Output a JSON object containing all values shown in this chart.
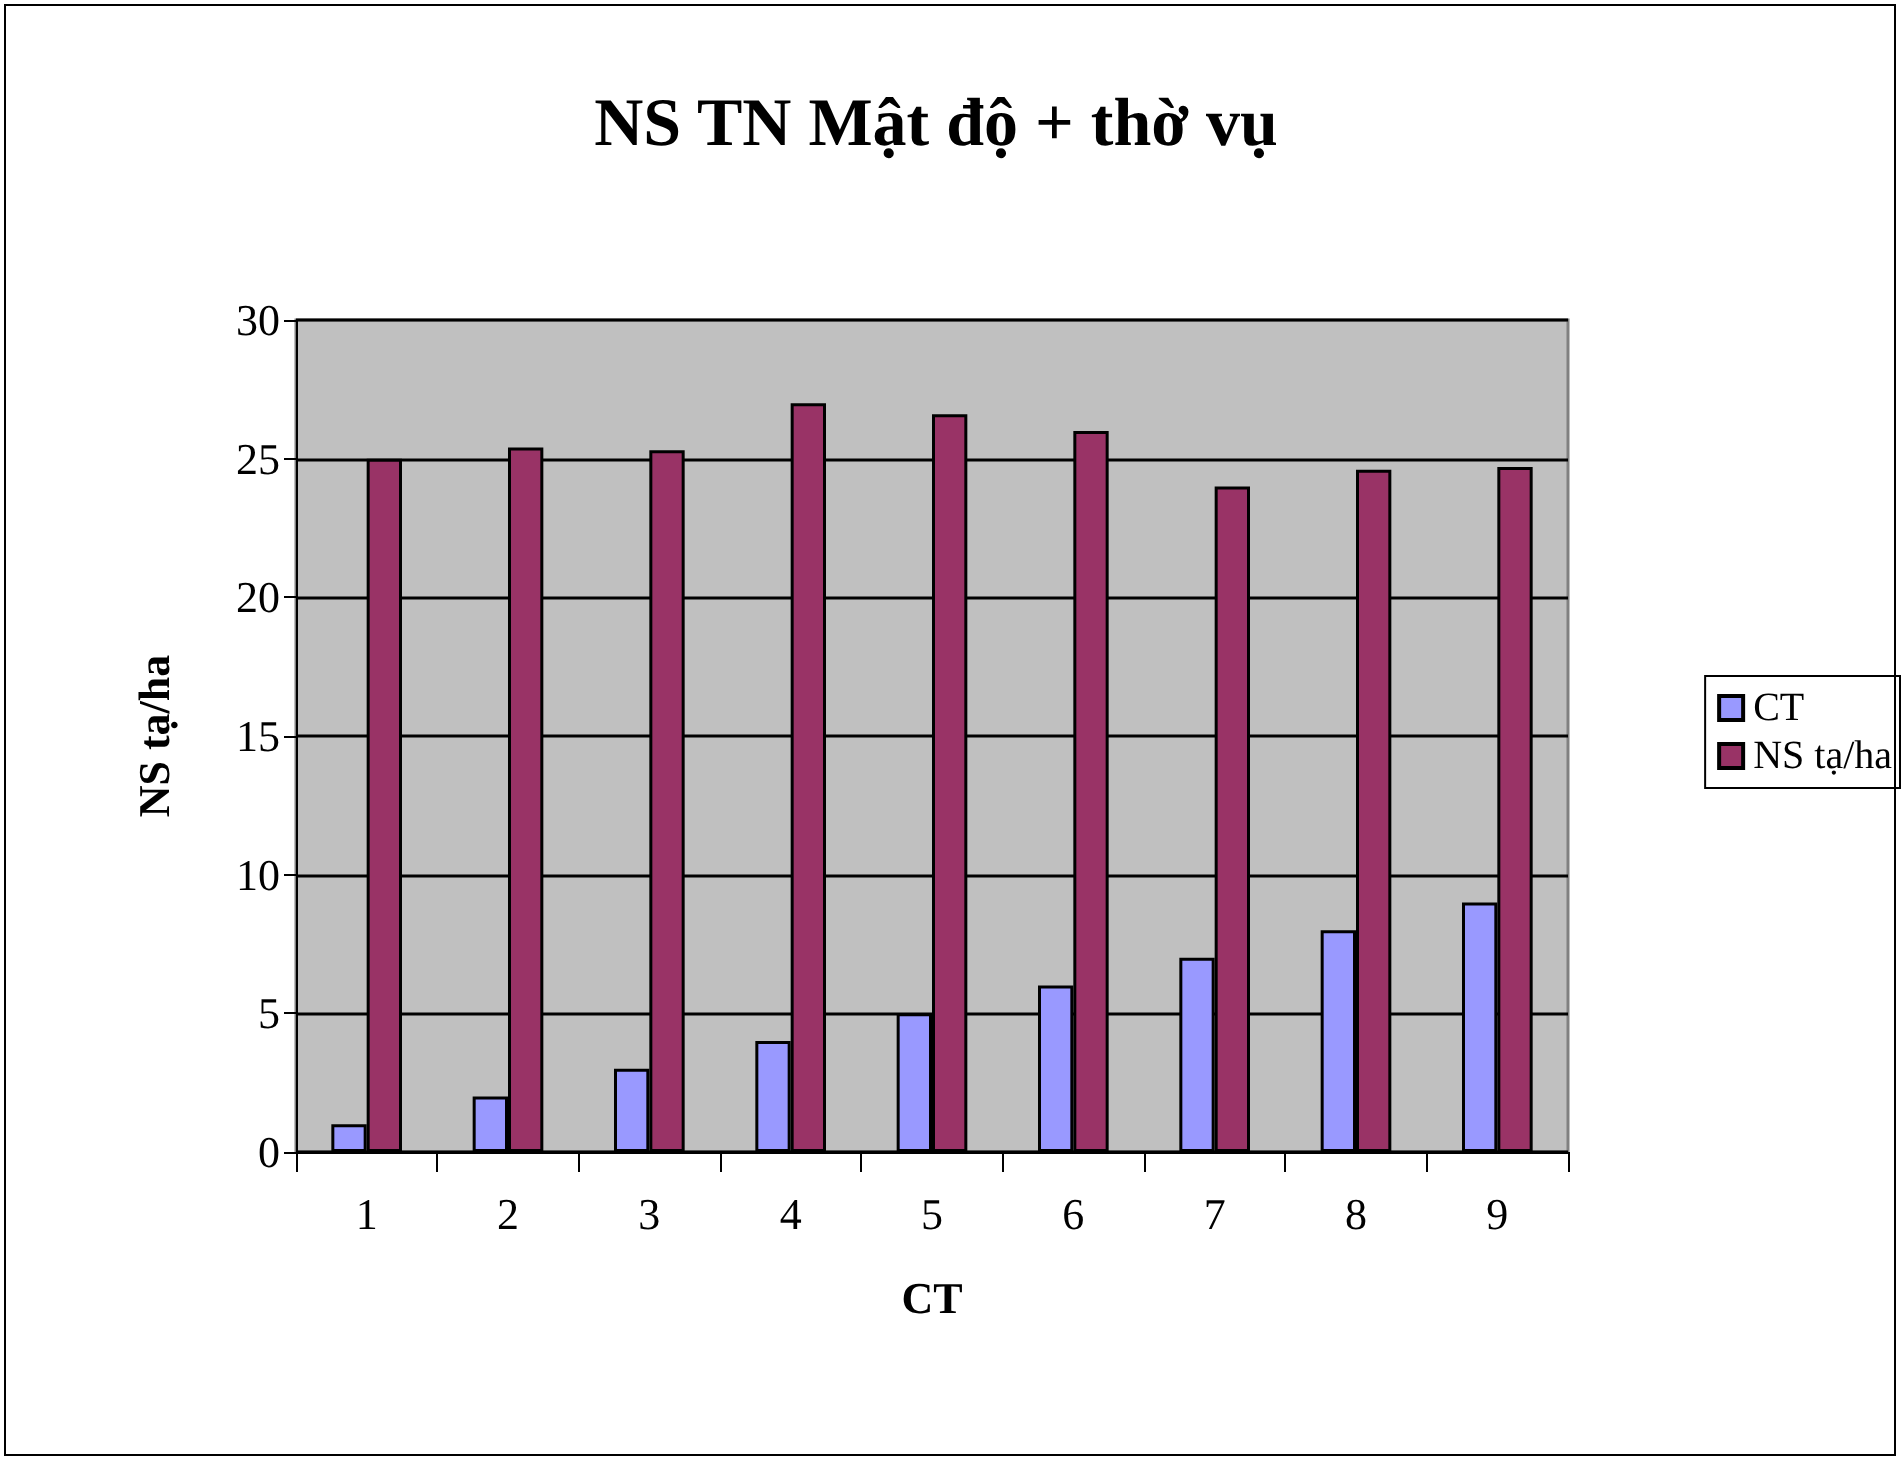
{
  "chart_data": {
    "type": "bar",
    "title": "NS TN Mật độ + thờ vụ",
    "xlabel": "CT",
    "ylabel": "NS tạ/ha",
    "categories": [
      "1",
      "2",
      "3",
      "4",
      "5",
      "6",
      "7",
      "8",
      "9"
    ],
    "series": [
      {
        "name": "CT",
        "color": "#9999ff",
        "values": [
          1,
          2,
          3,
          4,
          5,
          6,
          7,
          8,
          9
        ]
      },
      {
        "name": "NS tạ/ha",
        "color": "#993366",
        "values": [
          25,
          25.4,
          25.3,
          27,
          26.6,
          26,
          24,
          24.6,
          24.7
        ]
      }
    ],
    "ylim": [
      0,
      30
    ],
    "yticks": [
      0,
      5,
      10,
      15,
      20,
      25,
      30
    ],
    "grid": "y",
    "legend": "right"
  }
}
